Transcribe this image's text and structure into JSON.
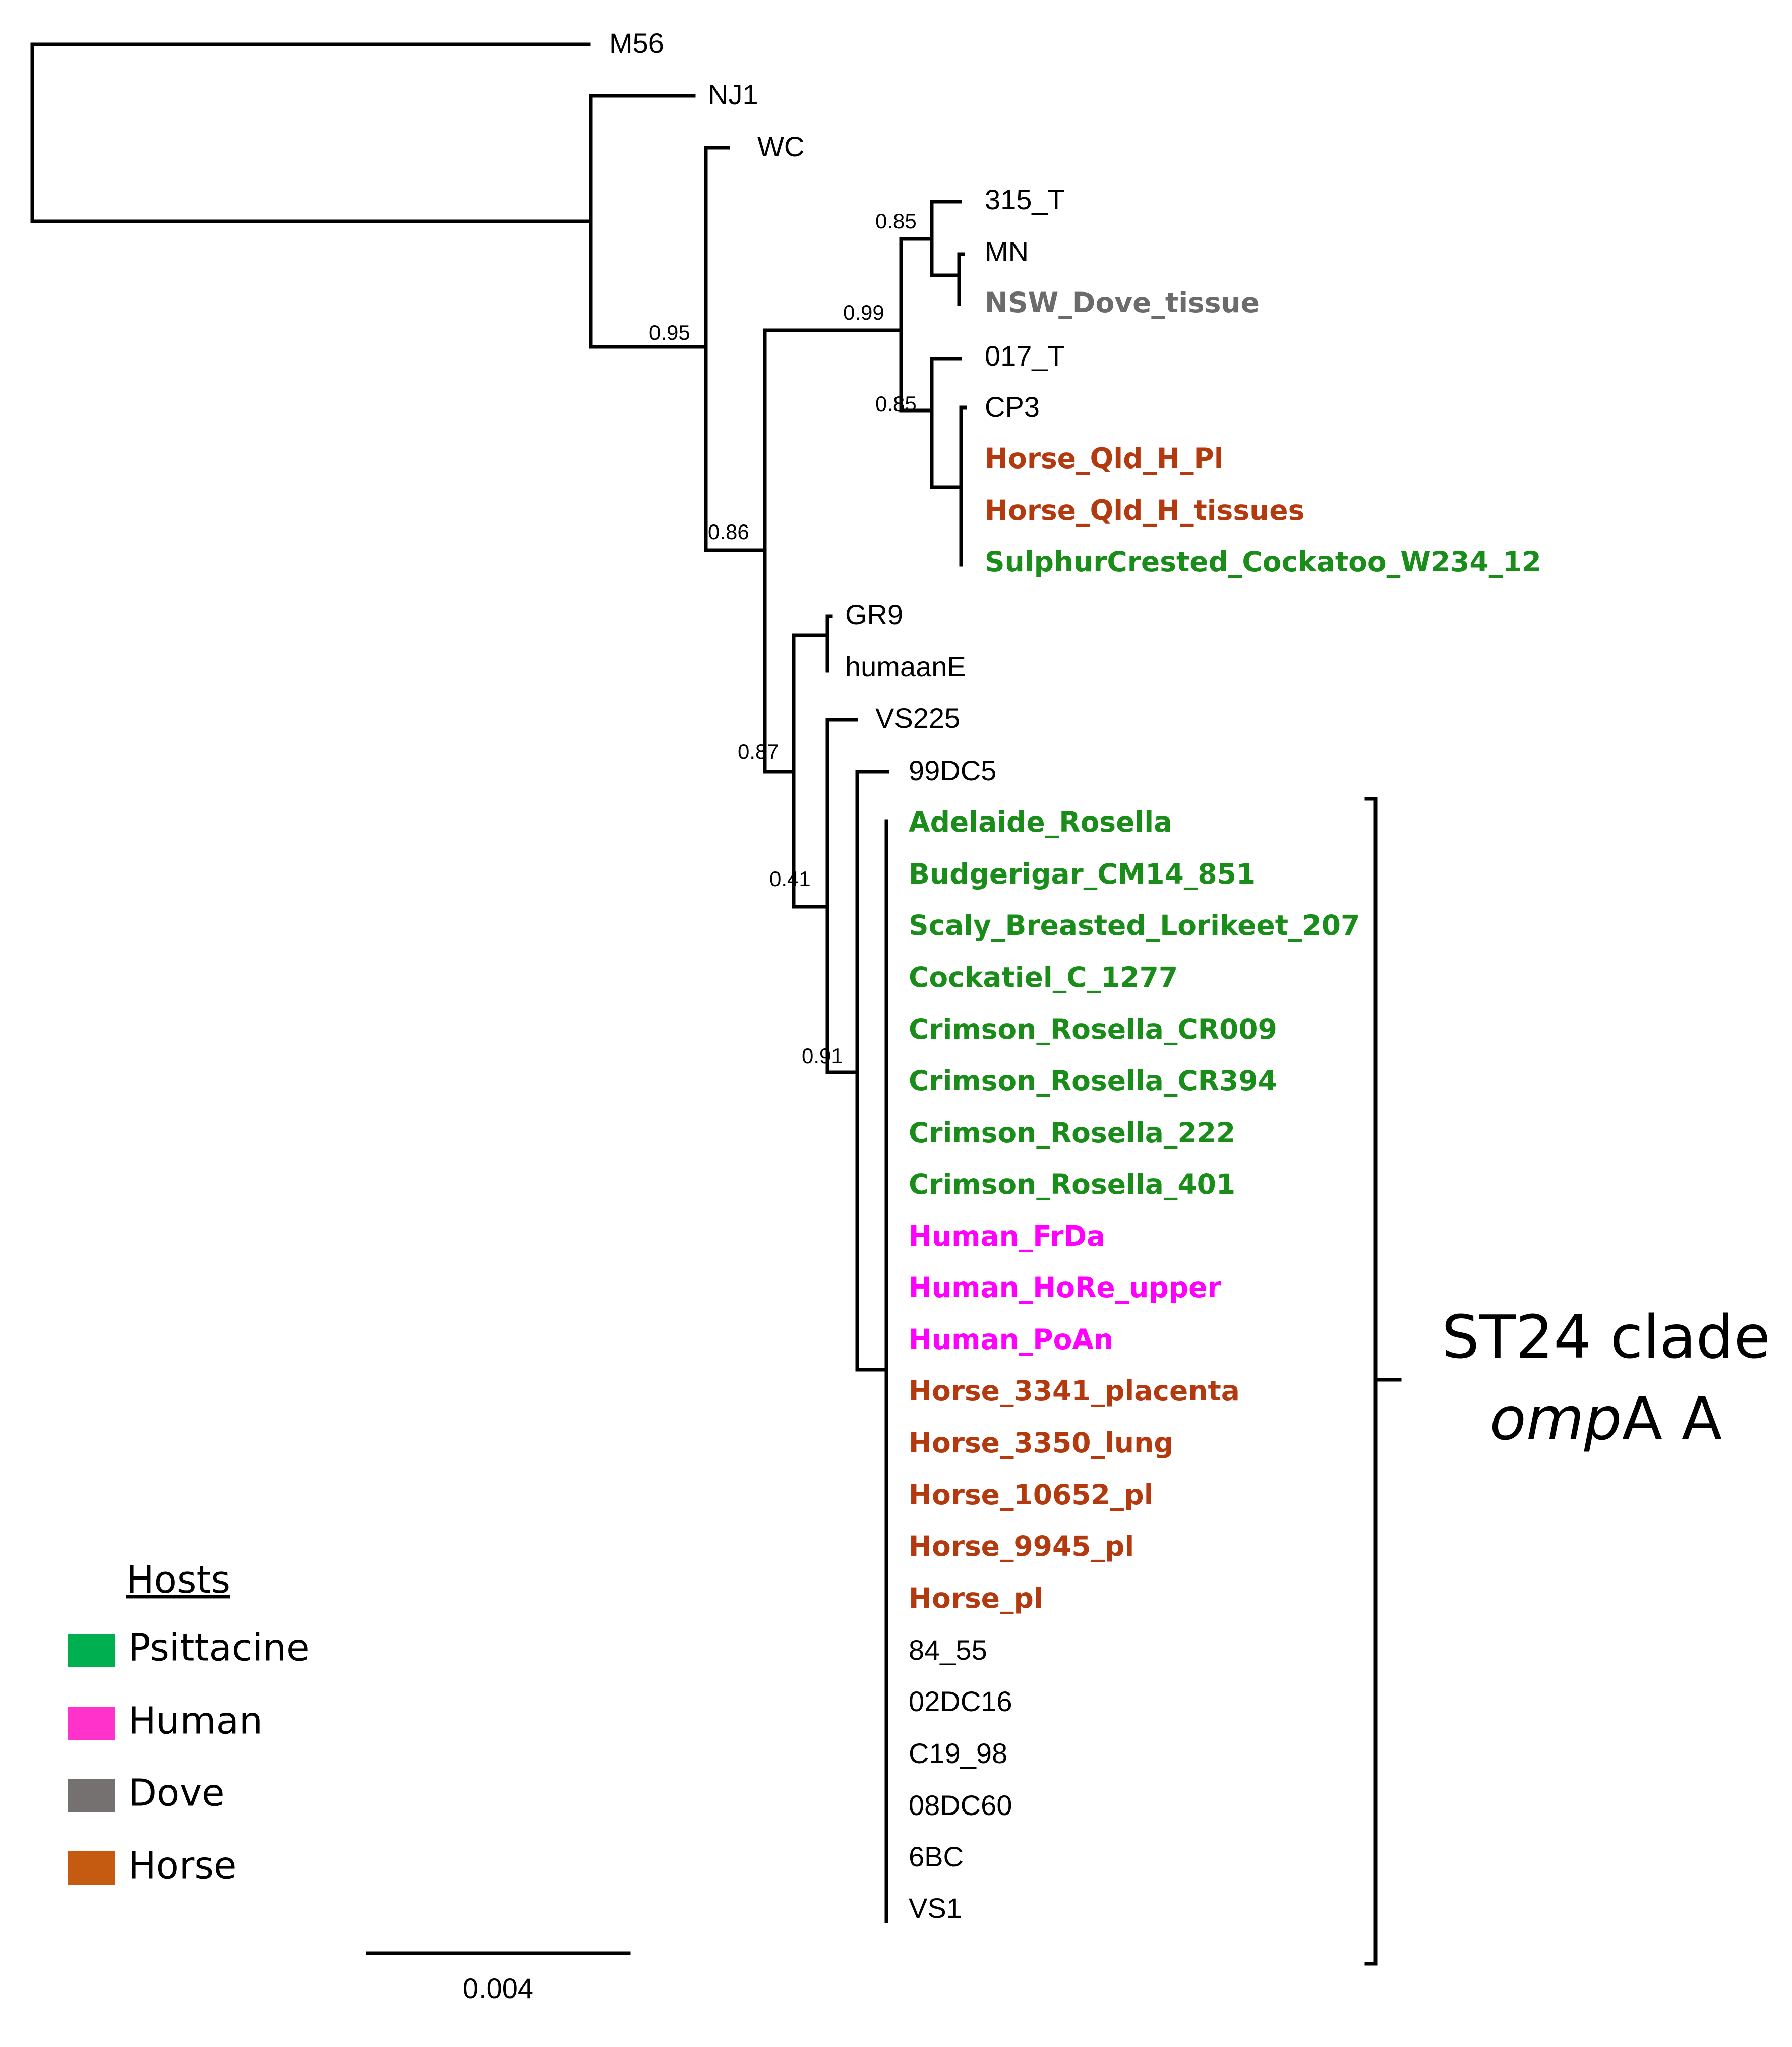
{
  "tree": {
    "leaves": [
      {
        "label": "M56",
        "host": "none"
      },
      {
        "label": "NJ1",
        "host": "none"
      },
      {
        "label": "WC",
        "host": "none"
      },
      {
        "label": "315_T",
        "host": "none"
      },
      {
        "label": "MN",
        "host": "none"
      },
      {
        "label": "NSW_Dove_tissue",
        "host": "Dove"
      },
      {
        "label": "017_T",
        "host": "none"
      },
      {
        "label": "CP3",
        "host": "none"
      },
      {
        "label": "Horse_Qld_H_Pl",
        "host": "Horse"
      },
      {
        "label": "Horse_Qld_H_tissues",
        "host": "Horse"
      },
      {
        "label": "SulphurCrested_Cockatoo_W234_12",
        "host": "Psittacine"
      },
      {
        "label": "GR9",
        "host": "none"
      },
      {
        "label": "humaanE",
        "host": "none"
      },
      {
        "label": "VS225",
        "host": "none"
      },
      {
        "label": "99DC5",
        "host": "none"
      },
      {
        "label": "Adelaide_Rosella",
        "host": "Psittacine"
      },
      {
        "label": "Budgerigar_CM14_851",
        "host": "Psittacine"
      },
      {
        "label": "Scaly_Breasted_Lorikeet_207",
        "host": "Psittacine"
      },
      {
        "label": "Cockatiel_C_1277",
        "host": "Psittacine"
      },
      {
        "label": "Crimson_Rosella_CR009",
        "host": "Psittacine"
      },
      {
        "label": "Crimson_Rosella_CR394",
        "host": "Psittacine"
      },
      {
        "label": "Crimson_Rosella_222",
        "host": "Psittacine"
      },
      {
        "label": "Crimson_Rosella_401",
        "host": "Psittacine"
      },
      {
        "label": "Human_FrDa",
        "host": "Human"
      },
      {
        "label": "Human_HoRe_upper",
        "host": "Human"
      },
      {
        "label": "Human_PoAn",
        "host": "Human"
      },
      {
        "label": "Horse_3341_placenta",
        "host": "Horse"
      },
      {
        "label": "Horse_3350_lung",
        "host": "Horse"
      },
      {
        "label": "Horse_10652_pl",
        "host": "Horse"
      },
      {
        "label": "Horse_9945_pl",
        "host": "Horse"
      },
      {
        "label": "Horse_pl",
        "host": "Horse"
      },
      {
        "label": "84_55",
        "host": "none"
      },
      {
        "label": "02DC16",
        "host": "none"
      },
      {
        "label": "C19_98",
        "host": "none"
      },
      {
        "label": "08DC60",
        "host": "none"
      },
      {
        "label": "6BC",
        "host": "none"
      },
      {
        "label": "VS1",
        "host": "none"
      }
    ],
    "support_values": [
      "0.95",
      "0.86",
      "0.99",
      "0.85",
      "0.85",
      "0.87",
      "0.41",
      "0.91"
    ],
    "host_colors": {
      "Psittacine": "#1a8c1a",
      "Human": "#ff00ff",
      "Dove": "#6b6b6b",
      "Horse": "#b33a0e",
      "none": "#000000"
    }
  },
  "clade": {
    "line1": "ST24 clade",
    "line2_italic": "omp",
    "line2_rest": "A A"
  },
  "legend": {
    "title": "Hosts",
    "items": [
      {
        "label": "Psittacine",
        "color": "#00b050"
      },
      {
        "label": "Human",
        "color": "#ff33cc"
      },
      {
        "label": "Dove",
        "color": "#767171"
      },
      {
        "label": "Horse",
        "color": "#c55a11"
      }
    ]
  },
  "scale": {
    "label": "0.004"
  }
}
